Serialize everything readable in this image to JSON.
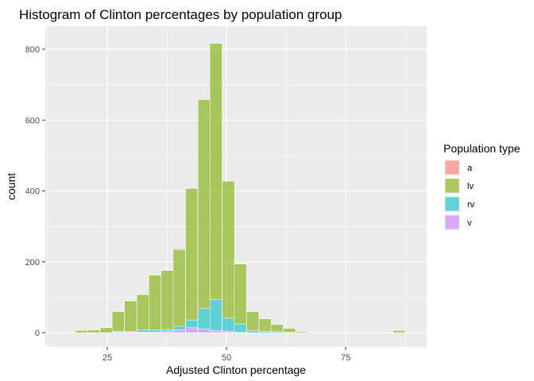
{
  "chart_data": {
    "type": "bar",
    "title": "Histogram of Clinton percentages by population group",
    "xlabel": "Adjusted Clinton percentage",
    "ylabel": "count",
    "xlim": [
      12,
      92
    ],
    "ylim": [
      -40,
      865
    ],
    "x_ticks": [
      25,
      50,
      75
    ],
    "y_ticks": [
      0,
      200,
      400,
      600,
      800
    ],
    "bin_width": 2.56,
    "stacked": true,
    "grid": true,
    "legend_position": "right",
    "legend_title": "Population type",
    "series": [
      {
        "name": "a",
        "color": "#F8766D",
        "x": [
          22.2,
          24.8,
          27.3,
          29.9,
          32.5,
          35.0,
          37.6,
          40.1,
          42.7,
          45.3,
          47.8,
          50.4,
          52.9,
          55.5
        ],
        "values": [
          0,
          0,
          1,
          1,
          1,
          1,
          1,
          2,
          2,
          2,
          1,
          1,
          1,
          0
        ]
      },
      {
        "name": "lv",
        "color": "#7CAE00",
        "x": [
          14.5,
          19.6,
          22.2,
          24.8,
          27.3,
          29.9,
          32.5,
          35.0,
          37.6,
          40.1,
          42.7,
          45.3,
          47.8,
          50.4,
          52.9,
          55.5,
          58.1,
          60.6,
          63.2,
          65.8,
          86.2
        ],
        "values": [
          1,
          6,
          9,
          15,
          57,
          86,
          100,
          155,
          167,
          217,
          371,
          590,
          723,
          387,
          169,
          55,
          35,
          20,
          11,
          3,
          6
        ]
      },
      {
        "name": "rv",
        "color": "#00BFC4",
        "x": [
          27.3,
          29.9,
          32.5,
          35.0,
          37.6,
          40.1,
          42.7,
          45.3,
          47.8,
          50.4,
          52.9,
          55.5,
          58.1,
          60.6,
          63.2
        ],
        "values": [
          2,
          2,
          6,
          6,
          6,
          10,
          22,
          58,
          88,
          37,
          24,
          6,
          4,
          3,
          1
        ]
      },
      {
        "name": "v",
        "color": "#C77CFF",
        "x": [
          27.3,
          29.9,
          32.5,
          35.0,
          37.6,
          40.1,
          42.7,
          45.3,
          47.8,
          50.4,
          52.9
        ],
        "values": [
          1,
          2,
          2,
          2,
          3,
          8,
          14,
          10,
          6,
          4,
          1
        ]
      }
    ]
  }
}
